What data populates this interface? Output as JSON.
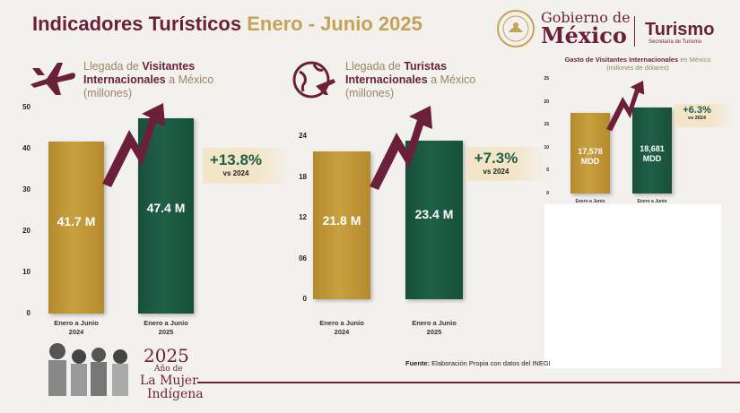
{
  "header": {
    "title_a": "Indicadores Turísticos",
    "title_b": "Enero - Junio 2025",
    "gob_line1": "Gobierno de",
    "gob_line2": "México",
    "turismo": "Turismo",
    "turismo_sub": "Secretaría de Turismo"
  },
  "panels": [
    {
      "head_pre": "Llegada de ",
      "head_bold": "Visitantes Internacionales",
      "head_post": " a México",
      "head_unit": "(millones)",
      "growth": "+13.8%",
      "vs": "vs 2024",
      "bar_labels": [
        "41.7 M",
        "47.4 M"
      ]
    },
    {
      "head_pre": "Llegada de ",
      "head_bold": "Turistas Internacionales",
      "head_post": " a México",
      "head_unit": "(millones)",
      "growth": "+7.3%",
      "vs": "vs 2024",
      "bar_labels": [
        "21.8 M",
        "23.4 M"
      ]
    },
    {
      "head_pre": "Gasto de ",
      "head_bold": "Visitantes Internacionales",
      "head_post": " en México",
      "head_unit": "(millones de dólares)",
      "growth": "+6.3%",
      "vs": "vs 2024",
      "bar_labels": [
        [
          "17,578",
          "MDD"
        ],
        [
          "18,681",
          "MDD"
        ]
      ]
    }
  ],
  "chart_data": [
    {
      "type": "bar",
      "categories": [
        "Enero a Junio 2024",
        "Enero a Junio 2025"
      ],
      "values": [
        41.7,
        47.4
      ],
      "yticks": [
        "50",
        "40",
        "30",
        "20",
        "10",
        "0"
      ],
      "ylim": [
        0,
        50
      ],
      "colors": [
        "#c39a3a",
        "#1c5a44"
      ]
    },
    {
      "type": "bar",
      "categories": [
        "Enero a Junio 2024",
        "Enero a Junio 2025"
      ],
      "values": [
        21.8,
        23.4
      ],
      "yticks": [
        "24",
        "18",
        "12",
        "06",
        "0"
      ],
      "ylim": [
        0,
        24
      ],
      "colors": [
        "#c39a3a",
        "#1c5a44"
      ]
    },
    {
      "type": "bar",
      "categories": [
        "Enero a Junio 2024",
        "Enero a Junio 2025"
      ],
      "values": [
        17578,
        18681
      ],
      "yticks": [
        "25",
        "20",
        "15",
        "10",
        "5",
        "0"
      ],
      "ylim": [
        0,
        25000
      ],
      "colors": [
        "#c39a3a",
        "#1c5a44"
      ]
    }
  ],
  "categories_display": [
    [
      "Enero a Junio",
      "2024"
    ],
    [
      "Enero a Junio",
      "2025"
    ]
  ],
  "footer": {
    "source_label": "Fuente:",
    "source_text": " Elaboración Propia con datos del INEGI",
    "mujer_year": "2025",
    "mujer_l1": "Año de",
    "mujer_l2": "La Mujer",
    "mujer_l3": "Indígena"
  }
}
